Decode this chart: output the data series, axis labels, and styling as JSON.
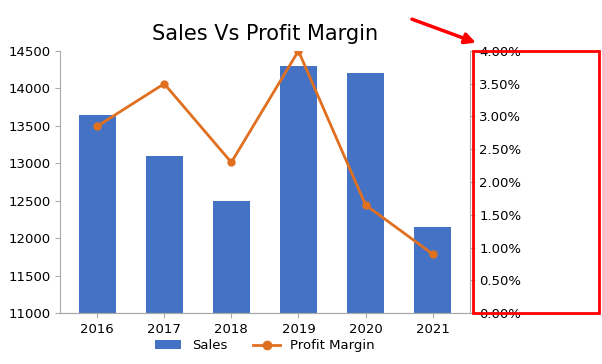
{
  "years": [
    2016,
    2017,
    2018,
    2019,
    2020,
    2021
  ],
  "sales": [
    13650,
    13100,
    12500,
    14300,
    14200,
    12150
  ],
  "profit_margin": [
    0.0285,
    0.035,
    0.023,
    0.04,
    0.0165,
    0.009
  ],
  "bar_color": "#4472C4",
  "line_color": "#E07020",
  "title": "Sales Vs Profit Margin",
  "ylim_left": [
    11000,
    14500
  ],
  "ylim_right": [
    0.0,
    0.04
  ],
  "legend_labels": [
    "Sales",
    "Profit Margin"
  ],
  "background_color": "#FFFFFF",
  "title_fontsize": 15,
  "tick_fontsize": 9.5,
  "legend_fontsize": 9.5,
  "bar_width": 0.55
}
